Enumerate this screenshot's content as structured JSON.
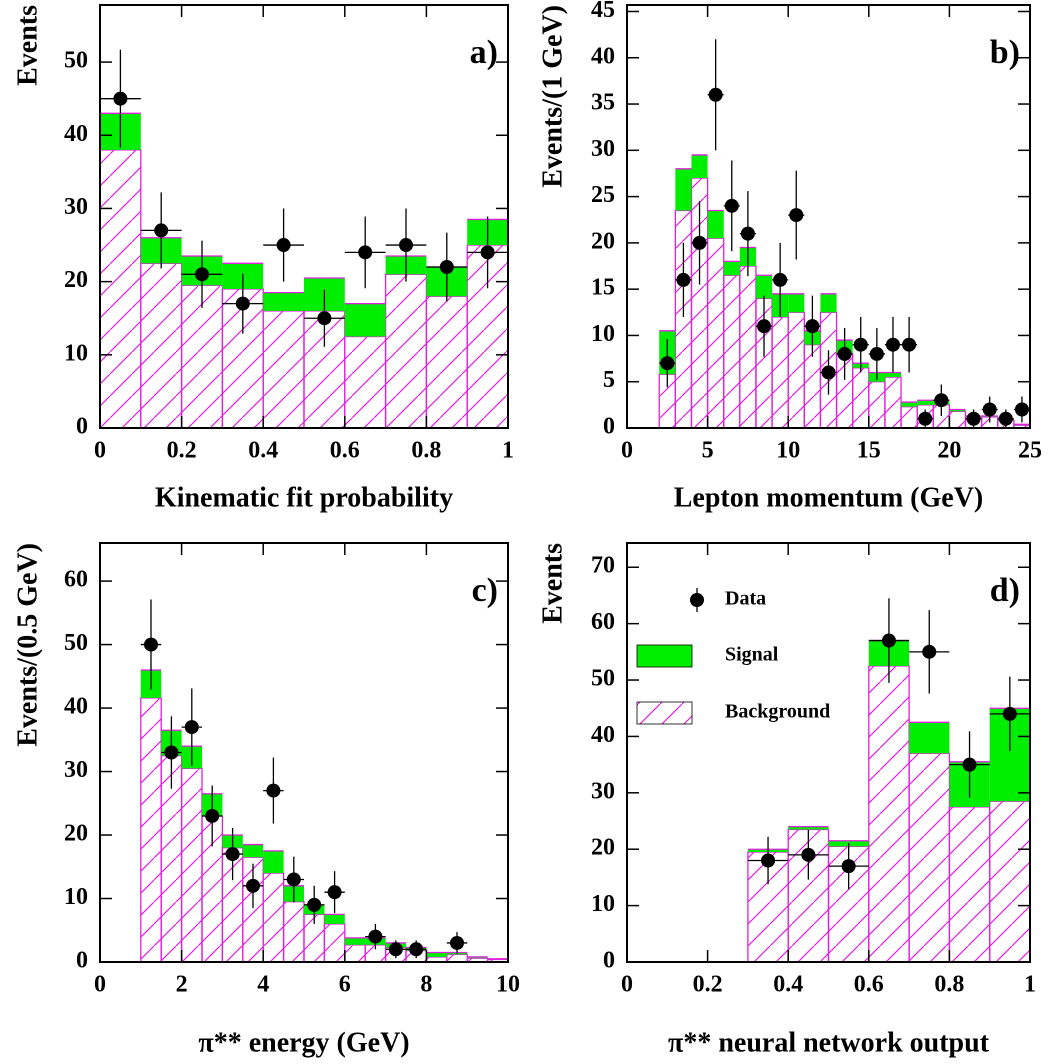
{
  "chart_data": [
    {
      "type": "histogram",
      "label": "a)",
      "xlabel": "Kinematic fit probability",
      "ylabel": "Events",
      "bins": [
        0,
        0.1,
        0.2,
        0.3,
        0.4,
        0.5,
        0.6,
        0.7,
        0.8,
        0.9,
        1
      ],
      "series": [
        {
          "color": "#e020e0",
          "hatch": true,
          "values": [
            38,
            22.5,
            19.5,
            19,
            16,
            16,
            12.5,
            21,
            18,
            25
          ]
        },
        {
          "color": "#00ee00",
          "values": [
            5,
            3.5,
            4,
            3.5,
            2.5,
            4.5,
            4.5,
            2.5,
            4,
            3.5
          ]
        }
      ],
      "data_points": {
        "color": "#000000",
        "values": [
          45,
          27,
          21,
          17,
          25,
          15,
          24,
          25,
          22,
          24
        ],
        "errors": [
          6.7,
          5.2,
          4.6,
          4.1,
          5,
          3.9,
          4.9,
          5,
          4.7,
          4.9
        ]
      },
      "xlim": [
        0,
        1
      ],
      "ylim": [
        0,
        57.8
      ],
      "xticks": [
        0,
        0.2,
        0.4,
        0.6,
        0.8,
        1
      ],
      "yticks": [
        0,
        10,
        20,
        30,
        40,
        50
      ]
    },
    {
      "type": "histogram",
      "label": "b)",
      "xlabel": "Lepton momentum (GeV)",
      "ylabel": "Events/(1 GeV)",
      "bins": [
        2,
        3,
        4,
        5,
        6,
        7,
        8,
        9,
        10,
        11,
        12,
        13,
        14,
        15,
        16,
        17,
        18,
        19,
        20,
        21,
        22,
        23,
        24,
        25
      ],
      "series": [
        {
          "color": "#e020e0",
          "hatch": true,
          "values": [
            5.8,
            23.5,
            27,
            20.5,
            16.5,
            17.5,
            14,
            12,
            12.5,
            9,
            12.5,
            8,
            6.5,
            5,
            5.5,
            2.3,
            2.5,
            2.5,
            1.8,
            1.2,
            1.2,
            0.8,
            0.3
          ]
        },
        {
          "color": "#00ee00",
          "values": [
            4.7,
            4.5,
            2.5,
            3,
            1.5,
            2,
            2.5,
            2.5,
            2,
            1.5,
            2,
            1.5,
            0.5,
            1,
            0.5,
            0.5,
            0.5,
            0.5,
            0.2,
            0.1,
            0.1,
            0.1,
            0.1
          ]
        }
      ],
      "data_points": {
        "color": "#000000",
        "values": [
          7,
          16,
          20,
          36,
          24,
          21,
          11,
          16,
          23,
          11,
          6,
          8,
          9,
          8,
          9,
          9,
          1,
          3,
          null,
          1,
          2,
          1,
          2
        ],
        "errors": [
          2.6,
          4,
          4.5,
          6,
          4.9,
          4.6,
          3.3,
          4,
          4.8,
          3.3,
          2.4,
          2.8,
          3,
          2.8,
          3,
          3,
          1,
          1.7,
          null,
          1,
          1.4,
          1,
          1.4
        ]
      },
      "xlim": [
        0,
        25
      ],
      "ylim": [
        0,
        45.7
      ],
      "xticks": [
        0,
        5,
        10,
        15,
        20,
        25
      ],
      "yticks": [
        0,
        5,
        10,
        15,
        20,
        25,
        30,
        35,
        40,
        45
      ]
    },
    {
      "type": "histogram",
      "label": "c)",
      "xlabel": "π** energy (GeV)",
      "ylabel": "Events/(0.5 GeV)",
      "bins": [
        1,
        1.5,
        2,
        2.5,
        3,
        3.5,
        4,
        4.5,
        5,
        5.5,
        6,
        6.5,
        7,
        7.5,
        8,
        8.5,
        9,
        9.5,
        10
      ],
      "series": [
        {
          "color": "#e020e0",
          "hatch": true,
          "values": [
            41.6,
            32.5,
            30.5,
            23,
            18,
            16.5,
            14,
            9.5,
            7.5,
            6,
            2.7,
            2.7,
            2.3,
            1.8,
            0.8,
            1.2,
            0.6,
            0.4
          ]
        },
        {
          "color": "#00ee00",
          "values": [
            4.4,
            4,
            3.5,
            3.5,
            2,
            2,
            3.5,
            2.5,
            1.5,
            1.5,
            1.1,
            1.1,
            0.7,
            0.5,
            0.7,
            0.3,
            0.2,
            0.1
          ]
        }
      ],
      "data_points": {
        "color": "#000000",
        "values": [
          50,
          33,
          37,
          23,
          17,
          12,
          27,
          13,
          9,
          11,
          null,
          4,
          2,
          2,
          null,
          3,
          null,
          null
        ],
        "errors": [
          7.1,
          5.7,
          6.1,
          4.8,
          4.1,
          3.5,
          5.2,
          3.6,
          3,
          3.3,
          null,
          2,
          1.4,
          1.4,
          null,
          1.7,
          null,
          null
        ]
      },
      "xlim": [
        0,
        10
      ],
      "ylim": [
        0,
        66
      ],
      "xticks": [
        0,
        2,
        4,
        6,
        8,
        10
      ],
      "yticks": [
        0,
        10,
        20,
        30,
        40,
        50,
        60
      ]
    },
    {
      "type": "histogram",
      "label": "d)",
      "xlabel": "π** neural network output",
      "ylabel": "Events",
      "legend": "upper left",
      "bins": [
        0,
        0.1,
        0.2,
        0.3,
        0.4,
        0.5,
        0.6,
        0.7,
        0.8,
        0.9,
        1
      ],
      "series": [
        {
          "name": "Background",
          "color": "#e020e0",
          "hatch": true,
          "values": [
            0,
            0,
            0,
            19.5,
            23.5,
            20.5,
            52.5,
            37,
            27.5,
            28.5
          ]
        },
        {
          "name": "Signal",
          "color": "#00ee00",
          "values": [
            0,
            0,
            0,
            0.5,
            0.5,
            1,
            4.5,
            5.5,
            8,
            16.5
          ]
        }
      ],
      "data_points": {
        "name": "Data",
        "color": "#000000",
        "values": [
          null,
          null,
          null,
          18,
          19,
          17,
          57,
          55,
          35,
          44
        ],
        "errors": [
          null,
          null,
          null,
          4.2,
          4.4,
          4.1,
          7.5,
          7.4,
          5.9,
          6.6
        ]
      },
      "xlim": [
        0,
        1
      ],
      "ylim": [
        0,
        74.3
      ],
      "xticks": [
        0,
        0.2,
        0.4,
        0.6,
        0.8,
        1
      ],
      "yticks": [
        0,
        10,
        20,
        30,
        40,
        50,
        60,
        70
      ]
    }
  ]
}
